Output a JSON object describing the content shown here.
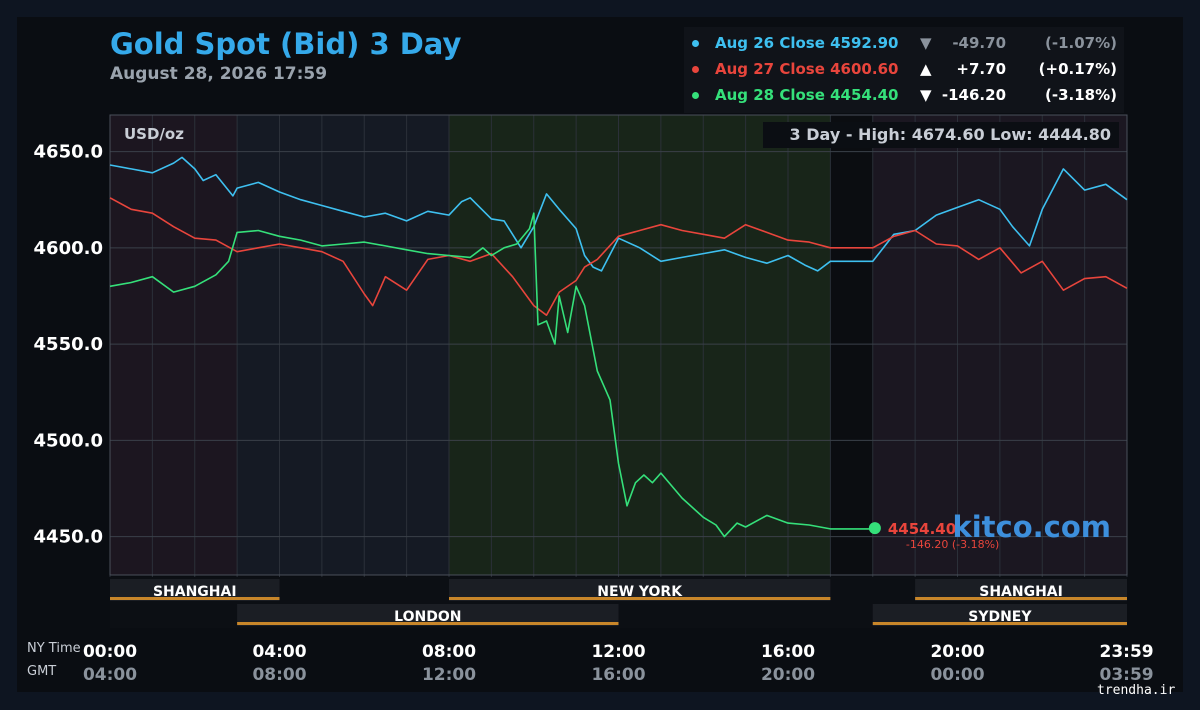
{
  "title": "Gold Spot (Bid) 3 Day",
  "subtitle": "August 28, 2026 17:59",
  "watermark": "trendha.ir",
  "brand": "kitco.com",
  "colors": {
    "aug26": "#3ec0f0",
    "aug27": "#e8453c",
    "aug28": "#35e07a",
    "title": "#35a9ea",
    "session_bar": "#c8862a"
  },
  "legend": [
    {
      "label": "Aug 26 Close 4592.90",
      "arrow": "▼",
      "change": "-49.70",
      "pct": "(-1.07%)",
      "color": "#3ec0f0",
      "muted": true
    },
    {
      "label": "Aug 27 Close 4600.60",
      "arrow": "▲",
      "change": "+7.70",
      "pct": "(+0.17%)",
      "color": "#e8453c",
      "muted": false
    },
    {
      "label": "Aug 28 Close 4454.40",
      "arrow": "▼",
      "change": "-146.20",
      "pct": "(-3.18%)",
      "color": "#35e07a",
      "muted": false
    }
  ],
  "chart_data": {
    "type": "line",
    "unit_label": "USD/oz",
    "range_text": "3 Day - High: 4674.60  Low: 4444.80",
    "y_ticks": [
      "4650.0",
      "4600.0",
      "4550.0",
      "4500.0",
      "4450.0"
    ],
    "ylim": [
      4429,
      4669
    ],
    "xlim": [
      0,
      24
    ],
    "x_ticks_ny": [
      "00:00",
      "04:00",
      "08:00",
      "12:00",
      "16:00",
      "20:00",
      "23:59"
    ],
    "x_ticks_gmt": [
      "04:00",
      "08:00",
      "12:00",
      "16:00",
      "20:00",
      "00:00",
      "03:59"
    ],
    "x_axis_labels": {
      "ny": "NY Time",
      "gmt": "GMT"
    },
    "last_price": {
      "value": "4454.40",
      "change": "-146.20 (-3.18%)",
      "time": 18.05
    },
    "sessions": [
      {
        "name": "SHANGHAI",
        "start": 0,
        "end": 4
      },
      {
        "name": "NEW YORK",
        "start": 8,
        "end": 17
      },
      {
        "name": "SHANGHAI",
        "start": 19,
        "end": 24
      },
      {
        "name": "LONDON",
        "start": 3,
        "end": 12
      },
      {
        "name": "SYDNEY",
        "start": 18,
        "end": 24
      }
    ],
    "series": [
      {
        "name": "Aug 26",
        "color": "#3ec0f0",
        "x": [
          0,
          0.5,
          1,
          1.5,
          1.7,
          2,
          2.2,
          2.5,
          2.9,
          3,
          3.5,
          4,
          4.5,
          5,
          5.5,
          6,
          6.5,
          7,
          7.5,
          8,
          8.3,
          8.5,
          9,
          9.3,
          9.7,
          10,
          10.3,
          10.6,
          11,
          11.2,
          11.4,
          11.6,
          12,
          12.5,
          13,
          13.5,
          14,
          14.5,
          15,
          15.5,
          16,
          16.4,
          16.7,
          17,
          17.5,
          18,
          18.5,
          19,
          19.5,
          20,
          20.5,
          21,
          21.3,
          21.7,
          22,
          22.5,
          23,
          23.5,
          24
        ],
        "y": [
          4643,
          4641,
          4639,
          4644,
          4647,
          4641,
          4635,
          4638,
          4627,
          4631,
          4634,
          4629,
          4625,
          4622,
          4619,
          4616,
          4618,
          4614,
          4619,
          4617,
          4624,
          4626,
          4615,
          4614,
          4600,
          4611,
          4628,
          4620,
          4610,
          4596,
          4590,
          4588,
          4605,
          4600,
          4593,
          4595,
          4597,
          4599,
          4595,
          4592,
          4596,
          4591,
          4588,
          4593,
          4593,
          4593,
          4607,
          4609,
          4617,
          4621,
          4625,
          4620,
          4611,
          4601,
          4620,
          4641,
          4630,
          4633,
          4625
        ]
      },
      {
        "name": "Aug 27",
        "color": "#e8453c",
        "x": [
          0,
          0.5,
          1,
          1.5,
          2,
          2.5,
          3,
          3.5,
          4,
          4.5,
          5,
          5.5,
          6,
          6.2,
          6.5,
          7,
          7.5,
          8,
          8.5,
          9,
          9.5,
          10,
          10.3,
          10.6,
          11,
          11.2,
          11.5,
          12,
          12.5,
          13,
          13.5,
          14,
          14.5,
          15,
          15.5,
          16,
          16.5,
          17,
          17.5,
          18,
          18.5,
          19,
          19.5,
          20,
          20.5,
          21,
          21.5,
          22,
          22.5,
          23,
          23.5,
          24
        ],
        "y": [
          4626,
          4620,
          4618,
          4611,
          4605,
          4604,
          4598,
          4600,
          4602,
          4600,
          4598,
          4593,
          4576,
          4570,
          4585,
          4578,
          4594,
          4596,
          4593,
          4597,
          4585,
          4570,
          4565,
          4577,
          4583,
          4590,
          4594,
          4606,
          4609,
          4612,
          4609,
          4607,
          4605,
          4612,
          4608,
          4604,
          4603,
          4600,
          4600,
          4600,
          4606,
          4609,
          4602,
          4601,
          4594,
          4600,
          4587,
          4593,
          4578,
          4584,
          4585,
          4579
        ]
      },
      {
        "name": "Aug 28",
        "color": "#35e07a",
        "x": [
          0,
          0.5,
          1,
          1.5,
          2,
          2.5,
          2.8,
          3,
          3.5,
          4,
          4.5,
          5,
          5.5,
          6,
          6.5,
          7,
          7.5,
          8,
          8.5,
          8.8,
          9,
          9.3,
          9.6,
          9.9,
          10,
          10.1,
          10.3,
          10.5,
          10.6,
          10.8,
          11,
          11.2,
          11.5,
          11.8,
          12,
          12.2,
          12.4,
          12.6,
          12.8,
          13,
          13.5,
          13.8,
          14,
          14.3,
          14.5,
          14.8,
          15,
          15.5,
          16,
          16.5,
          17,
          17.5,
          18,
          18.05
        ],
        "y": [
          4580,
          4582,
          4585,
          4577,
          4580,
          4586,
          4593,
          4608,
          4609,
          4606,
          4604,
          4601,
          4602,
          4603,
          4601,
          4599,
          4597,
          4596,
          4595,
          4600,
          4596,
          4600,
          4602,
          4610,
          4618,
          4560,
          4562,
          4550,
          4575,
          4556,
          4580,
          4570,
          4536,
          4521,
          4488,
          4466,
          4478,
          4482,
          4478,
          4483,
          4470,
          4464,
          4460,
          4456,
          4450,
          4457,
          4455,
          4461,
          4457,
          4456,
          4454,
          4454,
          4454,
          4454.4
        ]
      }
    ]
  }
}
